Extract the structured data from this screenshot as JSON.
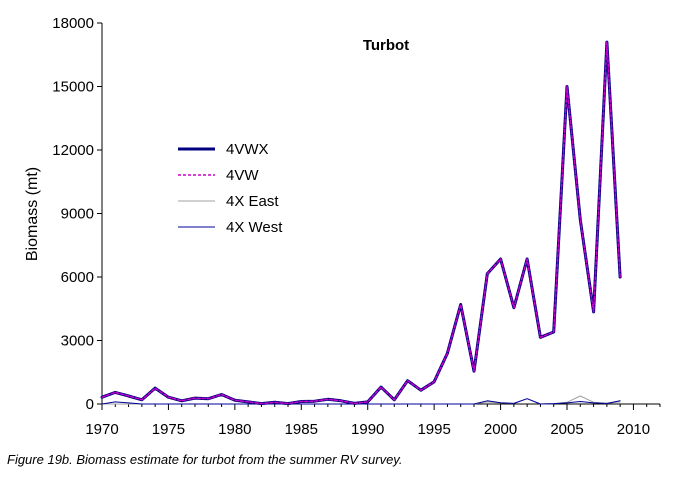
{
  "caption": "Figure 19b. Biomass estimate for turbot from the summer RV survey.",
  "chart_data": {
    "type": "line",
    "title": "Turbot",
    "xlabel": "",
    "ylabel": "Biomass (mt)",
    "xlim": [
      1970,
      2012
    ],
    "ylim": [
      0,
      18000
    ],
    "x_ticks": [
      1970,
      1975,
      1980,
      1985,
      1990,
      1995,
      2000,
      2005,
      2010
    ],
    "y_ticks": [
      0,
      3000,
      6000,
      9000,
      12000,
      15000,
      18000
    ],
    "y_tick_labels": [
      "0",
      "3000",
      "6000",
      "9000",
      "12000",
      "15000",
      "18000"
    ],
    "grid": false,
    "legend_position": "left-center",
    "x": [
      1970,
      1971,
      1972,
      1973,
      1974,
      1975,
      1976,
      1977,
      1978,
      1979,
      1980,
      1981,
      1982,
      1983,
      1984,
      1985,
      1986,
      1987,
      1988,
      1989,
      1990,
      1991,
      1992,
      1993,
      1994,
      1995,
      1996,
      1997,
      1998,
      1999,
      2000,
      2001,
      2002,
      2003,
      2004,
      2005,
      2006,
      2007,
      2008,
      2009
    ],
    "series": [
      {
        "name": "4VWX",
        "color": "#000080",
        "style": "solid-thick",
        "values": [
          320,
          550,
          380,
          200,
          750,
          320,
          150,
          280,
          250,
          450,
          180,
          100,
          20,
          80,
          20,
          120,
          130,
          220,
          150,
          30,
          100,
          800,
          200,
          1100,
          650,
          1050,
          2400,
          4700,
          1550,
          6150,
          6850,
          4550,
          6850,
          3150,
          3400,
          15000,
          8700,
          4350,
          17100,
          6000
        ]
      },
      {
        "name": "4VW",
        "color": "#cc00cc",
        "style": "dashed",
        "values": [
          320,
          550,
          380,
          200,
          750,
          320,
          150,
          280,
          250,
          450,
          180,
          100,
          20,
          80,
          20,
          120,
          130,
          220,
          150,
          30,
          100,
          800,
          200,
          1100,
          650,
          1050,
          2400,
          4700,
          1550,
          6150,
          6850,
          4550,
          6850,
          3150,
          3400,
          15000,
          8700,
          4350,
          17100,
          6000
        ]
      },
      {
        "name": "4X East",
        "color": "#a0a0a0",
        "style": "solid-thin",
        "values": [
          0,
          0,
          0,
          0,
          0,
          0,
          0,
          0,
          0,
          0,
          0,
          0,
          0,
          0,
          0,
          0,
          0,
          0,
          0,
          0,
          0,
          0,
          0,
          0,
          0,
          0,
          0,
          0,
          0,
          100,
          50,
          30,
          250,
          0,
          20,
          80,
          380,
          80,
          30,
          100
        ]
      },
      {
        "name": "4X West",
        "color": "#000099",
        "style": "solid-thin",
        "values": [
          0,
          100,
          50,
          0,
          0,
          0,
          0,
          0,
          0,
          0,
          0,
          0,
          0,
          0,
          0,
          0,
          0,
          0,
          0,
          0,
          0,
          0,
          0,
          0,
          0,
          0,
          0,
          0,
          0,
          150,
          60,
          30,
          250,
          0,
          20,
          50,
          120,
          50,
          30,
          150
        ]
      }
    ]
  }
}
